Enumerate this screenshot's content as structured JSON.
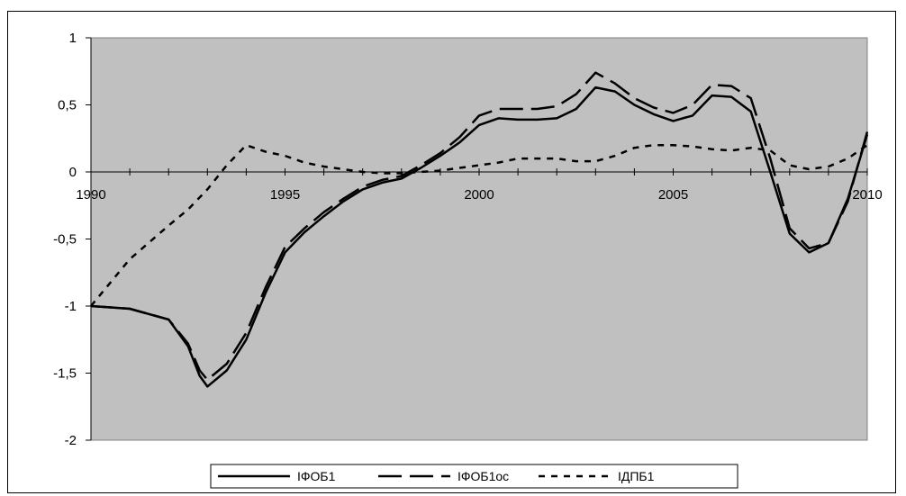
{
  "chart_data": {
    "type": "line",
    "title": "",
    "xlabel": "",
    "ylabel": "",
    "xlim": [
      1990,
      2010
    ],
    "ylim": [
      -2,
      1
    ],
    "grid": false,
    "plot_background": "#c0c0c0",
    "legend_position": "bottom",
    "x_ticks": [
      1990,
      1995,
      2000,
      2005,
      2010
    ],
    "x_tick_labels": [
      "1990",
      "1995",
      "2000",
      "2005",
      "2010"
    ],
    "y_ticks": [
      1,
      0.5,
      0,
      -0.5,
      -1,
      -1.5,
      -2
    ],
    "y_tick_labels": [
      "1",
      "0,5",
      "0",
      "-0,5",
      "-1",
      "-1,5",
      "-2"
    ],
    "series": [
      {
        "name": "ІФОБ1",
        "style": "solid",
        "color": "#000000",
        "x": [
          1990,
          1991,
          1992,
          1992.5,
          1992.8,
          1993,
          1993.5,
          1994,
          1994.5,
          1995,
          1995.5,
          1996,
          1996.5,
          1997,
          1997.5,
          1998,
          1998.5,
          1999,
          1999.5,
          2000,
          2000.5,
          2001,
          2001.5,
          2002,
          2002.5,
          2003,
          2003.5,
          2004,
          2004.5,
          2005,
          2005.5,
          2006,
          2006.5,
          2007,
          2007.5,
          2008,
          2008.5,
          2009,
          2009.5,
          2010
        ],
        "y": [
          -1.0,
          -1.02,
          -1.1,
          -1.3,
          -1.52,
          -1.6,
          -1.48,
          -1.25,
          -0.9,
          -0.6,
          -0.45,
          -0.33,
          -0.22,
          -0.13,
          -0.08,
          -0.05,
          0.03,
          0.12,
          0.22,
          0.35,
          0.4,
          0.39,
          0.39,
          0.4,
          0.47,
          0.63,
          0.6,
          0.5,
          0.43,
          0.38,
          0.42,
          0.57,
          0.56,
          0.45,
          0.0,
          -0.46,
          -0.6,
          -0.53,
          -0.2,
          0.28
        ]
      },
      {
        "name": "ІФОБ1ос",
        "style": "long-dash",
        "color": "#000000",
        "x": [
          1990,
          1991,
          1992,
          1992.5,
          1992.8,
          1993,
          1993.5,
          1994,
          1994.5,
          1995,
          1995.5,
          1996,
          1996.5,
          1997,
          1997.5,
          1998,
          1998.5,
          1999,
          1999.5,
          2000,
          2000.5,
          2001,
          2001.5,
          2002,
          2002.5,
          2003,
          2003.5,
          2004,
          2004.5,
          2005,
          2005.5,
          2006,
          2006.5,
          2007,
          2007.5,
          2008,
          2008.5,
          2009,
          2009.5,
          2010
        ],
        "y": [
          -1.0,
          -1.02,
          -1.1,
          -1.28,
          -1.48,
          -1.55,
          -1.43,
          -1.2,
          -0.86,
          -0.56,
          -0.42,
          -0.3,
          -0.2,
          -0.11,
          -0.06,
          -0.03,
          0.05,
          0.14,
          0.26,
          0.42,
          0.47,
          0.47,
          0.47,
          0.49,
          0.58,
          0.74,
          0.66,
          0.55,
          0.48,
          0.44,
          0.5,
          0.65,
          0.64,
          0.55,
          0.1,
          -0.42,
          -0.57,
          -0.53,
          -0.22,
          0.3
        ]
      },
      {
        "name": "ІДПБ1",
        "style": "short-dash",
        "color": "#000000",
        "x": [
          1990,
          1991,
          1992,
          1992.5,
          1993,
          1993.5,
          1994,
          1994.5,
          1995,
          1995.5,
          1996,
          1996.5,
          1997,
          1997.5,
          1998,
          1998.5,
          1999,
          1999.5,
          2000,
          2000.5,
          2001,
          2001.5,
          2002,
          2002.5,
          2003,
          2003.5,
          2004,
          2004.5,
          2005,
          2005.5,
          2006,
          2006.5,
          2007,
          2007.5,
          2008,
          2008.5,
          2009,
          2009.5,
          2010
        ],
        "y": [
          -1.0,
          -0.65,
          -0.4,
          -0.28,
          -0.13,
          0.05,
          0.2,
          0.15,
          0.12,
          0.07,
          0.04,
          0.02,
          0.0,
          -0.01,
          -0.01,
          0.0,
          0.01,
          0.03,
          0.05,
          0.07,
          0.1,
          0.1,
          0.1,
          0.08,
          0.08,
          0.12,
          0.18,
          0.2,
          0.2,
          0.19,
          0.17,
          0.16,
          0.18,
          0.16,
          0.05,
          0.02,
          0.04,
          0.1,
          0.2
        ]
      }
    ]
  }
}
